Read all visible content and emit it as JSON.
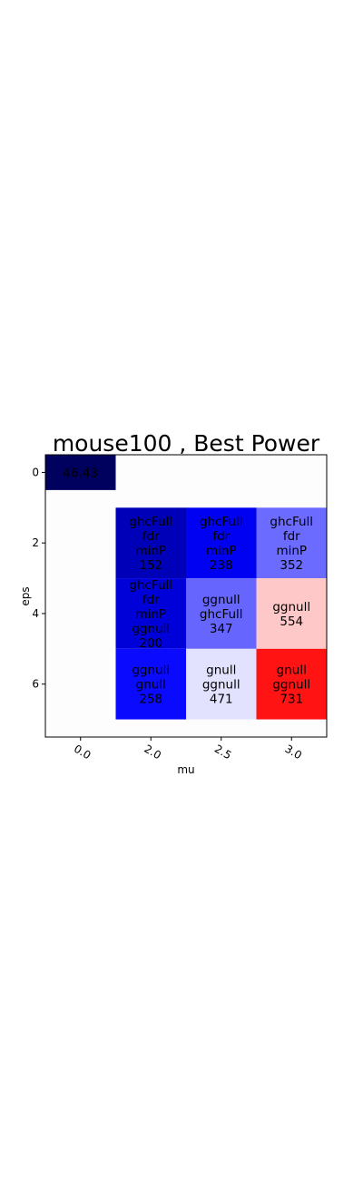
{
  "chart_data": {
    "type": "heatmap",
    "title": "mouse100 , Best Power",
    "xlabel": "mu",
    "ylabel": "eps",
    "x_tick_labels": [
      "0.0",
      "2.0",
      "2.5",
      "3.0"
    ],
    "y_ticks": [
      0,
      2,
      4,
      6
    ],
    "ylim": [
      -0.5,
      7.5
    ],
    "xlim": [
      -0.5,
      3.5
    ],
    "colormap": "seismic",
    "cells": [
      {
        "x": 0,
        "y": 0,
        "lines": [
          "46.43"
        ],
        "value": 46.43,
        "color": "#00005f"
      },
      {
        "x": 1,
        "y": 2,
        "lines": [
          "ghcFull",
          "fdr",
          "minP",
          "152"
        ],
        "value": 152,
        "color": "#0000b8"
      },
      {
        "x": 2,
        "y": 2,
        "lines": [
          "ghcFull",
          "fdr",
          "minP",
          "238"
        ],
        "value": 238,
        "color": "#0000f3"
      },
      {
        "x": 3,
        "y": 2,
        "lines": [
          "ghcFull",
          "fdr",
          "minP",
          "352"
        ],
        "value": 352,
        "color": "#6b6bff"
      },
      {
        "x": 1,
        "y": 4,
        "lines": [
          "ghcFull",
          "fdr",
          "minP",
          "ggnull",
          "200"
        ],
        "value": 200,
        "color": "#0000d8"
      },
      {
        "x": 2,
        "y": 4,
        "lines": [
          "ggnull",
          "ghcFull",
          "347"
        ],
        "value": 347,
        "color": "#6666ff"
      },
      {
        "x": 3,
        "y": 4,
        "lines": [
          "ggnull",
          "554"
        ],
        "value": 554,
        "color": "#ffc8c8"
      },
      {
        "x": 1,
        "y": 6,
        "lines": [
          "ggnull",
          "gnull",
          "258"
        ],
        "value": 258,
        "color": "#0a0aff"
      },
      {
        "x": 2,
        "y": 6,
        "lines": [
          "gnull",
          "ggnull",
          "471"
        ],
        "value": 471,
        "color": "#e2e2ff"
      },
      {
        "x": 3,
        "y": 6,
        "lines": [
          "gnull",
          "ggnull",
          "731"
        ],
        "value": 731,
        "color": "#ff1313"
      }
    ],
    "empty_color": "#fdfdfd"
  }
}
